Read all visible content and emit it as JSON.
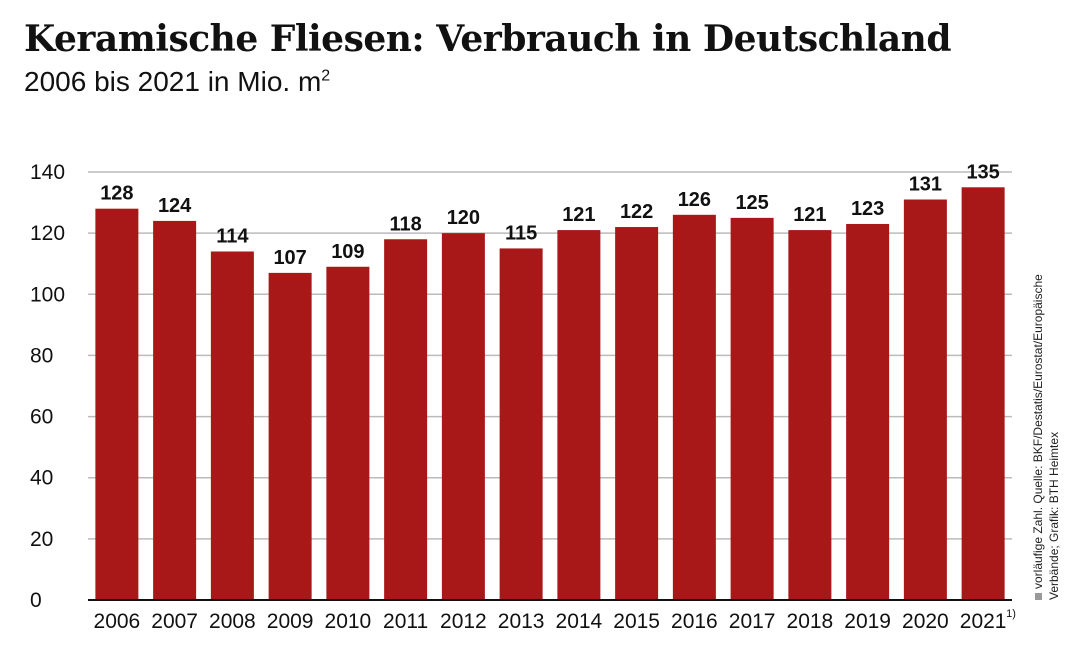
{
  "title": "Keramische Fliesen: Verbrauch in Deutschland",
  "subtitle": "2006 bis 2021 in Mio. m",
  "subtitle_sup": "2",
  "source_line1": "vorläufige Zahl. Quelle: BKF/Destatis/Eurostat/Europäische",
  "source_line2": "Verbände; Grafik: BTH Heimtex",
  "colors": {
    "bar": "#A81818",
    "grid": "#bbbbbb",
    "marker": "#999999"
  },
  "chart_data": {
    "type": "bar",
    "categories": [
      "2006",
      "2007",
      "2008",
      "2009",
      "2010",
      "2011",
      "2012",
      "2013",
      "2014",
      "2015",
      "2016",
      "2017",
      "2018",
      "2019",
      "2020",
      "2021"
    ],
    "values": [
      128,
      124,
      114,
      107,
      109,
      118,
      120,
      115,
      121,
      122,
      126,
      125,
      121,
      123,
      131,
      135
    ],
    "footnote_category": "2021",
    "footnote_mark": "1)",
    "yticks": [
      0,
      20,
      40,
      60,
      80,
      100,
      120,
      140
    ],
    "ylim": [
      0,
      140
    ],
    "grid": true,
    "data_labels": true
  }
}
